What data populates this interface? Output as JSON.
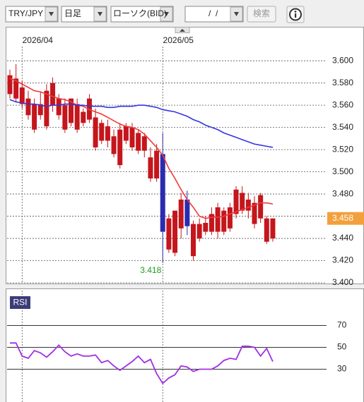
{
  "toolbar": {
    "symbol": "TRY/JPY",
    "period": "日足",
    "chart_type": "ローソク(BID)",
    "date": "/  /",
    "search": "検索"
  },
  "chart_data": [
    {
      "type": "candlestick",
      "categories": [
        null,
        null,
        "2026/04",
        null,
        null,
        null,
        null,
        null,
        null,
        null,
        null,
        null,
        null,
        null,
        null,
        null,
        null,
        null,
        null,
        null,
        null,
        null,
        null,
        null,
        null,
        "2026/05",
        null,
        null,
        null,
        null,
        null,
        null,
        null,
        null,
        null,
        null,
        null,
        null,
        null,
        null,
        null,
        null,
        null,
        null
      ],
      "open": [
        3.57,
        3.566,
        3.561,
        3.551,
        3.538,
        3.551,
        3.541,
        3.56,
        3.551,
        3.538,
        3.544,
        3.538,
        3.544,
        3.547,
        3.522,
        3.528,
        3.528,
        3.516,
        3.506,
        3.528,
        3.522,
        3.519,
        3.519,
        3.494,
        3.494,
        3.516,
        3.43,
        3.427,
        3.449,
        3.475,
        3.424,
        3.44,
        3.446,
        3.446,
        3.446,
        3.446,
        3.449,
        3.462,
        3.465,
        3.465,
        3.453,
        3.458,
        3.437,
        3.44
      ],
      "high": [
        3.592,
        3.597,
        3.582,
        3.573,
        3.566,
        3.572,
        3.579,
        3.585,
        3.57,
        3.566,
        3.566,
        3.566,
        3.557,
        3.57,
        3.557,
        3.547,
        3.547,
        3.538,
        3.544,
        3.544,
        3.544,
        3.538,
        3.535,
        3.522,
        3.525,
        3.535,
        3.462,
        3.465,
        3.481,
        3.483,
        3.456,
        3.458,
        3.46,
        3.468,
        3.472,
        3.468,
        3.472,
        3.487,
        3.487,
        3.481,
        3.478,
        3.481,
        3.46,
        3.458
      ],
      "low": [
        3.566,
        3.563,
        3.557,
        3.547,
        3.535,
        3.547,
        3.538,
        3.554,
        3.547,
        3.535,
        3.541,
        3.535,
        3.541,
        3.544,
        3.519,
        3.525,
        3.522,
        3.513,
        3.503,
        3.525,
        3.519,
        3.516,
        3.513,
        3.491,
        3.491,
        3.418,
        3.427,
        3.424,
        3.44,
        3.443,
        3.42,
        3.437,
        3.443,
        3.443,
        3.44,
        3.443,
        3.446,
        3.458,
        3.462,
        3.458,
        3.449,
        3.454,
        3.435,
        3.437
      ],
      "close": [
        3.587,
        3.584,
        3.576,
        3.566,
        3.561,
        3.561,
        3.573,
        3.58,
        3.566,
        3.56,
        3.566,
        3.561,
        3.554,
        3.566,
        3.549,
        3.544,
        3.541,
        3.532,
        3.538,
        3.541,
        3.54,
        3.535,
        3.532,
        3.513,
        3.519,
        3.446,
        3.458,
        3.465,
        3.475,
        3.451,
        3.453,
        3.453,
        3.454,
        3.462,
        3.468,
        3.465,
        3.468,
        3.484,
        3.481,
        3.475,
        3.472,
        3.479,
        3.458,
        3.458
      ],
      "up_color": "#c4161c",
      "down_color": "#2b2bb0",
      "series": [
        {
          "color": "#f03a3a",
          "values": [
            3.584,
            3.582,
            3.579,
            3.576,
            3.573,
            3.572,
            3.57,
            3.568,
            3.566,
            3.565,
            3.563,
            3.56,
            3.559,
            3.556,
            3.554,
            3.552,
            3.549,
            3.546,
            3.543,
            3.541,
            3.54,
            3.538,
            3.534,
            3.528,
            3.522,
            3.515,
            3.503,
            3.494,
            3.484,
            3.475,
            3.468,
            3.46,
            3.458,
            3.459,
            3.459,
            3.46,
            3.462,
            3.464,
            3.466,
            3.468,
            3.47,
            3.472,
            3.472,
            3.471
          ]
        },
        {
          "color": "#3535e0",
          "values": [
            3.565,
            3.563,
            3.562,
            3.561,
            3.561,
            3.56,
            3.559,
            3.56,
            3.56,
            3.561,
            3.561,
            3.56,
            3.56,
            3.559,
            3.559,
            3.559,
            3.558,
            3.558,
            3.559,
            3.559,
            3.559,
            3.56,
            3.56,
            3.559,
            3.558,
            3.556,
            3.555,
            3.554,
            3.552,
            3.55,
            3.547,
            3.545,
            3.542,
            3.54,
            3.538,
            3.535,
            3.533,
            3.531,
            3.529,
            3.527,
            3.525,
            3.524,
            3.523,
            3.522
          ]
        }
      ],
      "ylim": [
        3.4,
        3.623
      ],
      "yticks": [
        {
          "value": 3.6,
          "label": "3.600"
        },
        {
          "value": 3.58,
          "label": "3.580"
        },
        {
          "value": 3.56,
          "label": "3.560"
        },
        {
          "value": 3.54,
          "label": "3.540"
        },
        {
          "value": 3.52,
          "label": "3.520"
        },
        {
          "value": 3.5,
          "label": "3.500"
        },
        {
          "value": 3.48,
          "label": "3.480"
        },
        {
          "value": 3.46,
          "label": "3.460"
        },
        {
          "value": 3.44,
          "label": "3.440"
        },
        {
          "value": 3.42,
          "label": "3.420"
        },
        {
          "value": 3.4,
          "label": "3.400"
        }
      ],
      "grid": true,
      "current_price": 3.458,
      "current_price_color": "#f2a03c",
      "low_annotation": 3.418,
      "low_annotation_color": "#1f9a1f"
    },
    {
      "type": "line",
      "label": "RSI",
      "series": [
        {
          "color": "#a030e0",
          "values": [
            54,
            54,
            42,
            40,
            47,
            45,
            41,
            46,
            52,
            46,
            42,
            44,
            42,
            42,
            43,
            36,
            38,
            33,
            29,
            33,
            37,
            42,
            36,
            39,
            26,
            17,
            22,
            25,
            33,
            32,
            28,
            30,
            30,
            30,
            33,
            38,
            40,
            39,
            51,
            51,
            50,
            42,
            49,
            37
          ]
        }
      ],
      "ylim": [
        0,
        100
      ],
      "yticks": [
        30,
        50,
        70
      ],
      "grid": true
    }
  ]
}
